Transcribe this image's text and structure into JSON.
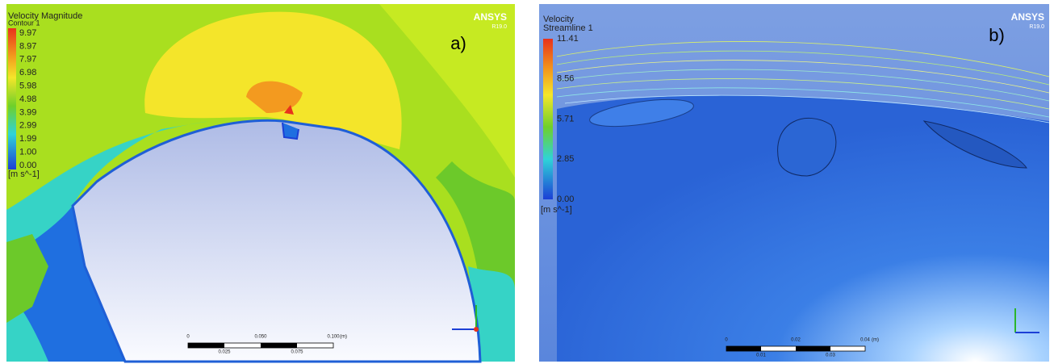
{
  "panel_a": {
    "title": "Velocity Magnitude",
    "subtitle": "Contour 1",
    "legend": [
      "9.97",
      "8.97",
      "7.97",
      "6.98",
      "5.98",
      "4.98",
      "3.99",
      "2.99",
      "1.99",
      "1.00",
      "0.00"
    ],
    "unit": "[m s^-1]",
    "brand": "ANSYS",
    "version": "R19.0",
    "label": "a)",
    "scale_top": [
      "0",
      "0.050",
      "0.100",
      "(m)"
    ],
    "scale_bottom": [
      "0.025",
      "0.075"
    ]
  },
  "panel_b": {
    "title": "Velocity",
    "subtitle": "Streamline 1",
    "legend": [
      "11.41",
      "8.56",
      "5.71",
      "2.85",
      "0.00"
    ],
    "unit": "[m s^-1]",
    "brand": "ANSYS",
    "version": "R19.0",
    "label": "b)",
    "scale_top": [
      "0",
      "0.02",
      "0.04",
      "(m)"
    ],
    "scale_bottom": [
      "0.01",
      "0.03"
    ]
  }
}
